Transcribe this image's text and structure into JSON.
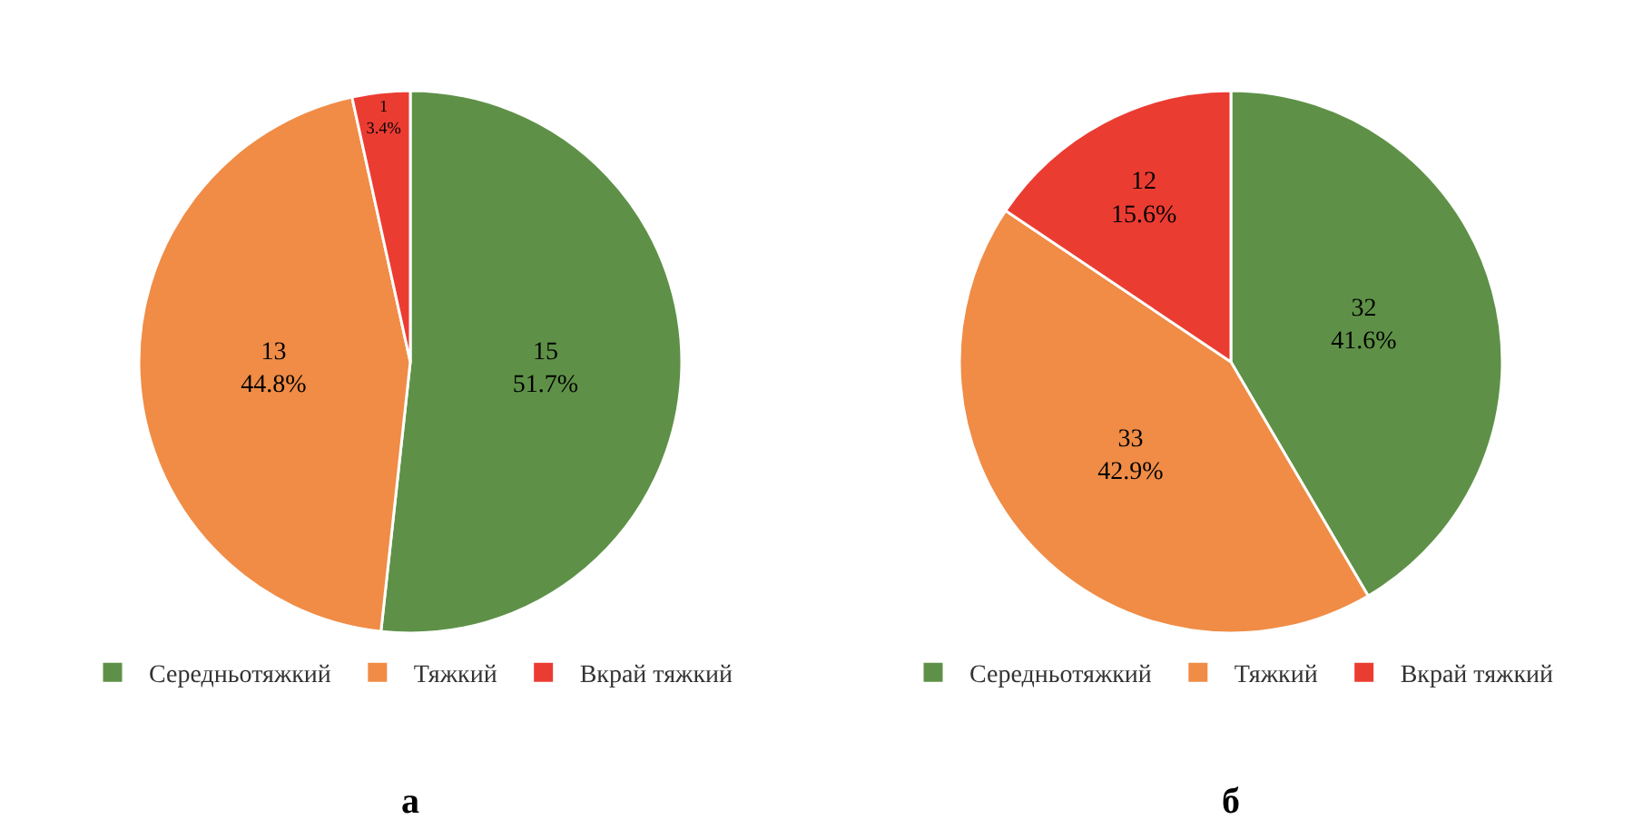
{
  "chart_data": [
    {
      "type": "pie",
      "title": "а",
      "categories": [
        "Середньотяжкий",
        "Тяжкий",
        "Вкрай тяжкий"
      ],
      "values": [
        15,
        13,
        1
      ],
      "colors": [
        "#5e9147",
        "#f08c46",
        "#eb3c32"
      ],
      "value_labels": [
        "15\n51.7%",
        "13\n44.8%",
        "1\n3.4%"
      ],
      "legend": "bottom"
    },
    {
      "type": "pie",
      "title": "б",
      "categories": [
        "Середньотяжкий",
        "Тяжкий",
        "Вкрай тяжкий"
      ],
      "values": [
        32,
        33,
        12
      ],
      "colors": [
        "#5e9147",
        "#f08c46",
        "#eb3c32"
      ],
      "value_labels": [
        "32\n41.6%",
        "33\n42.9%",
        "12\n15.6%"
      ],
      "legend": "bottom"
    }
  ]
}
